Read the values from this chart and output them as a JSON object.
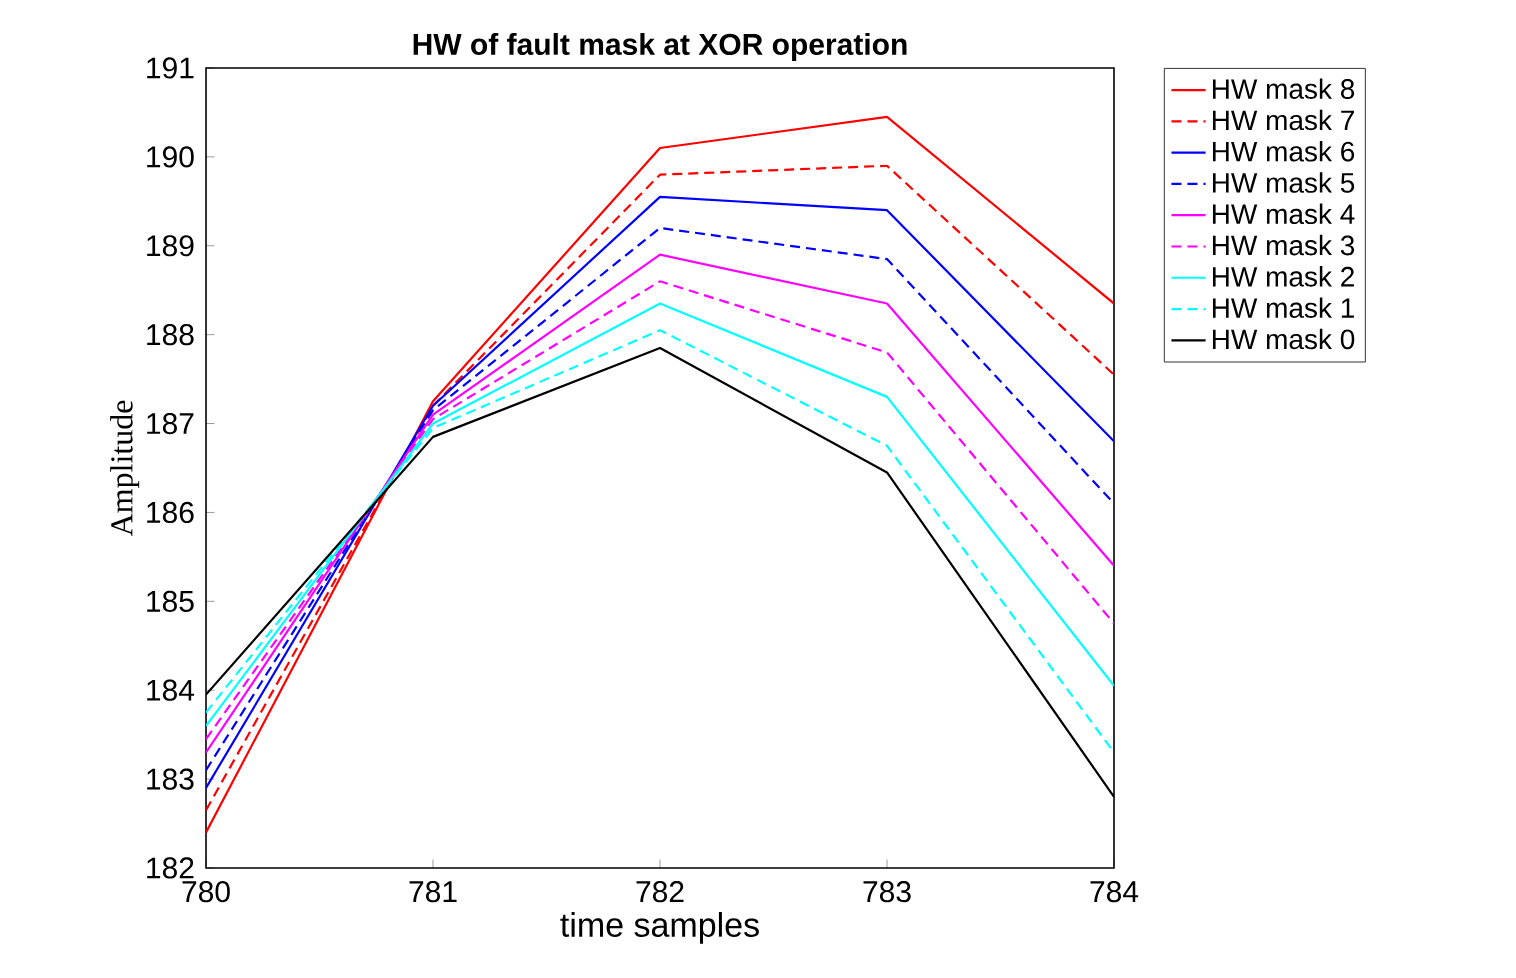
{
  "chart_data": {
    "type": "line",
    "title": "HW of fault mask at XOR operation",
    "xlabel": "time samples",
    "ylabel": "Amplitude",
    "x": [
      780,
      781,
      782,
      783,
      784
    ],
    "series": [
      {
        "name": "HW mask 8",
        "color": "#ff0000",
        "line_style": "solid",
        "values": [
          182.4,
          187.25,
          190.1,
          190.45,
          188.35
        ]
      },
      {
        "name": "HW mask 7",
        "color": "#ff0000",
        "line_style": "dashed",
        "values": [
          182.65,
          187.2,
          189.8,
          189.9,
          187.55
        ]
      },
      {
        "name": "HW mask 6",
        "color": "#0000ff",
        "line_style": "solid",
        "values": [
          182.9,
          187.2,
          189.55,
          189.4,
          186.8
        ]
      },
      {
        "name": "HW mask 5",
        "color": "#0000ff",
        "line_style": "dashed",
        "values": [
          183.1,
          187.15,
          189.2,
          188.85,
          186.1
        ]
      },
      {
        "name": "HW mask 4",
        "color": "#ff00ff",
        "line_style": "solid",
        "values": [
          183.3,
          187.1,
          188.9,
          188.35,
          185.4
        ]
      },
      {
        "name": "HW mask 3",
        "color": "#ff00ff",
        "line_style": "dashed",
        "values": [
          183.45,
          187.05,
          188.6,
          187.8,
          184.75
        ]
      },
      {
        "name": "HW mask 2",
        "color": "#00ffff",
        "line_style": "solid",
        "values": [
          183.6,
          187.0,
          188.35,
          187.3,
          184.05
        ]
      },
      {
        "name": "HW mask 1",
        "color": "#00ffff",
        "line_style": "dashed",
        "values": [
          183.75,
          186.95,
          188.05,
          186.75,
          183.3
        ]
      },
      {
        "name": "HW mask 0",
        "color": "#000000",
        "line_style": "solid",
        "values": [
          183.95,
          186.85,
          187.85,
          186.45,
          182.8
        ]
      }
    ],
    "xlim": [
      780,
      784
    ],
    "ylim": [
      182,
      191
    ],
    "xticks": [
      780,
      781,
      782,
      783,
      784
    ],
    "yticks": [
      182,
      183,
      184,
      185,
      186,
      187,
      188,
      189,
      190,
      191
    ],
    "grid": false,
    "legend": "right",
    "marker": "none"
  }
}
